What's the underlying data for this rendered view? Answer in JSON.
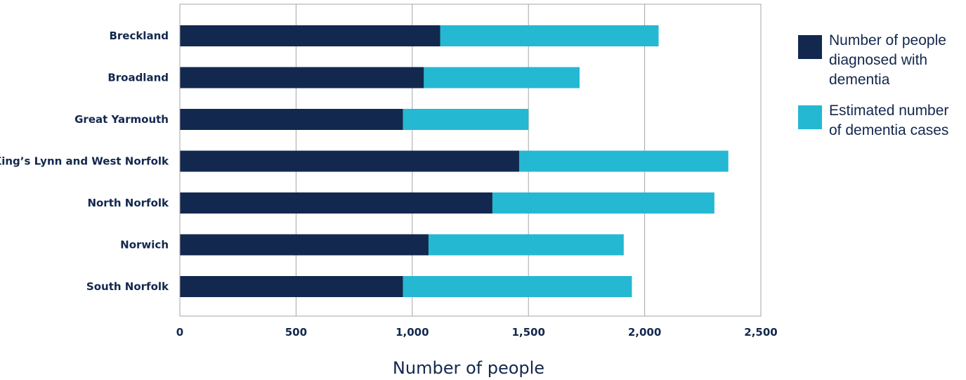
{
  "chart_data": {
    "type": "bar",
    "orientation": "horizontal",
    "stacked": true,
    "title": "",
    "xlabel": "Number of people",
    "ylabel": "",
    "xlim": [
      0,
      2500
    ],
    "xticks": [
      0,
      500,
      1000,
      1500,
      2000,
      2500
    ],
    "xtick_labels": [
      "0",
      "500",
      "1,000",
      "1,500",
      "2,000",
      "2,500"
    ],
    "grid": "vertical",
    "legend_position": "right",
    "categories": [
      "Breckland",
      "Broadland",
      "Great Yarmouth",
      "King’s Lynn and West Norfolk",
      "North Norfolk",
      "Norwich",
      "South Norfolk"
    ],
    "series": [
      {
        "name": "Number of people diagnosed with dementia",
        "color": "#12284e",
        "values": [
          1120,
          1050,
          960,
          1460,
          1345,
          1070,
          960
        ]
      },
      {
        "name": "Estimated number of dementia cases",
        "color": "#24b8d2",
        "values": [
          940,
          670,
          540,
          900,
          955,
          840,
          985
        ]
      }
    ]
  }
}
